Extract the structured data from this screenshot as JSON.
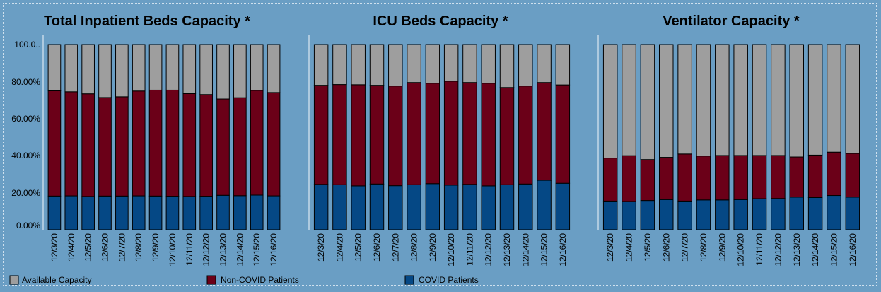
{
  "colors": {
    "background": "#6a9ec4",
    "available": "#9e9e9e",
    "noncovid": "#6b0018",
    "covid": "#054885"
  },
  "y_tick_labels": [
    "100.0..",
    "80.00%",
    "60.00%",
    "40.00%",
    "20.00%",
    "0.00%"
  ],
  "legend": [
    {
      "key": "available",
      "label": "Available Capacity"
    },
    {
      "key": "noncovid",
      "label": "Non-COVID Patients"
    },
    {
      "key": "covid",
      "label": "COVID Patients"
    }
  ],
  "chart_data": [
    {
      "type": "bar",
      "stacked": true,
      "title": "Total Inpatient Beds Capacity *",
      "categories": [
        "12/3/20",
        "12/4/20",
        "12/5/20",
        "12/6/20",
        "12/7/20",
        "12/8/20",
        "12/9/20",
        "12/10/20",
        "12/11/20",
        "12/12/20",
        "12/13/20",
        "12/14/20",
        "12/15/20",
        "12/16/20"
      ],
      "ylim": [
        0,
        100
      ],
      "series": [
        {
          "name": "COVID Patients",
          "key": "covid",
          "values": [
            18.2,
            18.3,
            18.0,
            18.2,
            18.2,
            18.3,
            18.2,
            18.1,
            18.0,
            18.1,
            18.6,
            18.4,
            18.7,
            18.3
          ]
        },
        {
          "name": "Non-COVID Patients",
          "key": "noncovid",
          "values": [
            56.8,
            56.2,
            55.4,
            53.2,
            53.6,
            56.6,
            57.2,
            57.3,
            55.5,
            54.9,
            52.0,
            52.9,
            56.5,
            55.8
          ]
        },
        {
          "name": "Available Capacity",
          "key": "available",
          "values": [
            25.0,
            25.5,
            26.6,
            28.6,
            28.2,
            25.1,
            24.6,
            24.6,
            26.5,
            27.0,
            29.4,
            28.7,
            24.8,
            25.9
          ]
        }
      ]
    },
    {
      "type": "bar",
      "stacked": true,
      "title": "ICU Beds Capacity *",
      "categories": [
        "12/3/20",
        "12/4/20",
        "12/5/20",
        "12/6/20",
        "12/7/20",
        "12/8/20",
        "12/9/20",
        "12/10/20",
        "12/11/20",
        "12/12/20",
        "12/13/20",
        "12/14/20",
        "12/15/20",
        "12/16/20"
      ],
      "ylim": [
        0,
        100
      ],
      "series": [
        {
          "name": "COVID Patients",
          "key": "covid",
          "values": [
            24.5,
            24.3,
            23.7,
            24.7,
            23.8,
            24.3,
            24.9,
            24.1,
            24.5,
            23.7,
            24.3,
            24.7,
            26.7,
            25.1
          ]
        },
        {
          "name": "Non-COVID Patients",
          "key": "noncovid",
          "values": [
            53.5,
            54.1,
            54.6,
            53.3,
            53.8,
            55.2,
            54.2,
            56.1,
            55.0,
            55.4,
            52.5,
            52.9,
            52.8,
            53.1
          ]
        },
        {
          "name": "Available Capacity",
          "key": "available",
          "values": [
            22.0,
            21.6,
            21.7,
            22.0,
            22.4,
            20.5,
            20.9,
            19.8,
            20.5,
            20.9,
            23.2,
            22.4,
            20.5,
            21.8
          ]
        }
      ]
    },
    {
      "type": "bar",
      "stacked": true,
      "title": "Ventilator Capacity *",
      "categories": [
        "12/3/20",
        "12/4/20",
        "12/5/20",
        "12/6/20",
        "12/7/20",
        "12/8/20",
        "12/9/20",
        "12/10/20",
        "12/11/20",
        "12/12/20",
        "12/13/20",
        "12/14/20",
        "12/15/20",
        "12/16/20"
      ],
      "ylim": [
        0,
        100
      ],
      "series": [
        {
          "name": "COVID Patients",
          "key": "covid",
          "values": [
            15.5,
            15.3,
            15.8,
            16.3,
            15.5,
            16.1,
            16.1,
            16.3,
            16.8,
            16.9,
            17.6,
            17.4,
            18.5,
            17.6
          ]
        },
        {
          "name": "Non-COVID Patients",
          "key": "noncovid",
          "values": [
            23.2,
            24.7,
            22.1,
            22.8,
            25.4,
            23.7,
            24.0,
            23.8,
            23.3,
            23.2,
            21.7,
            22.9,
            23.4,
            23.6
          ]
        },
        {
          "name": "Available Capacity",
          "key": "available",
          "values": [
            61.3,
            60.0,
            62.1,
            60.9,
            59.1,
            60.2,
            59.9,
            59.9,
            59.9,
            59.9,
            60.7,
            59.7,
            58.1,
            58.8
          ]
        }
      ]
    }
  ]
}
